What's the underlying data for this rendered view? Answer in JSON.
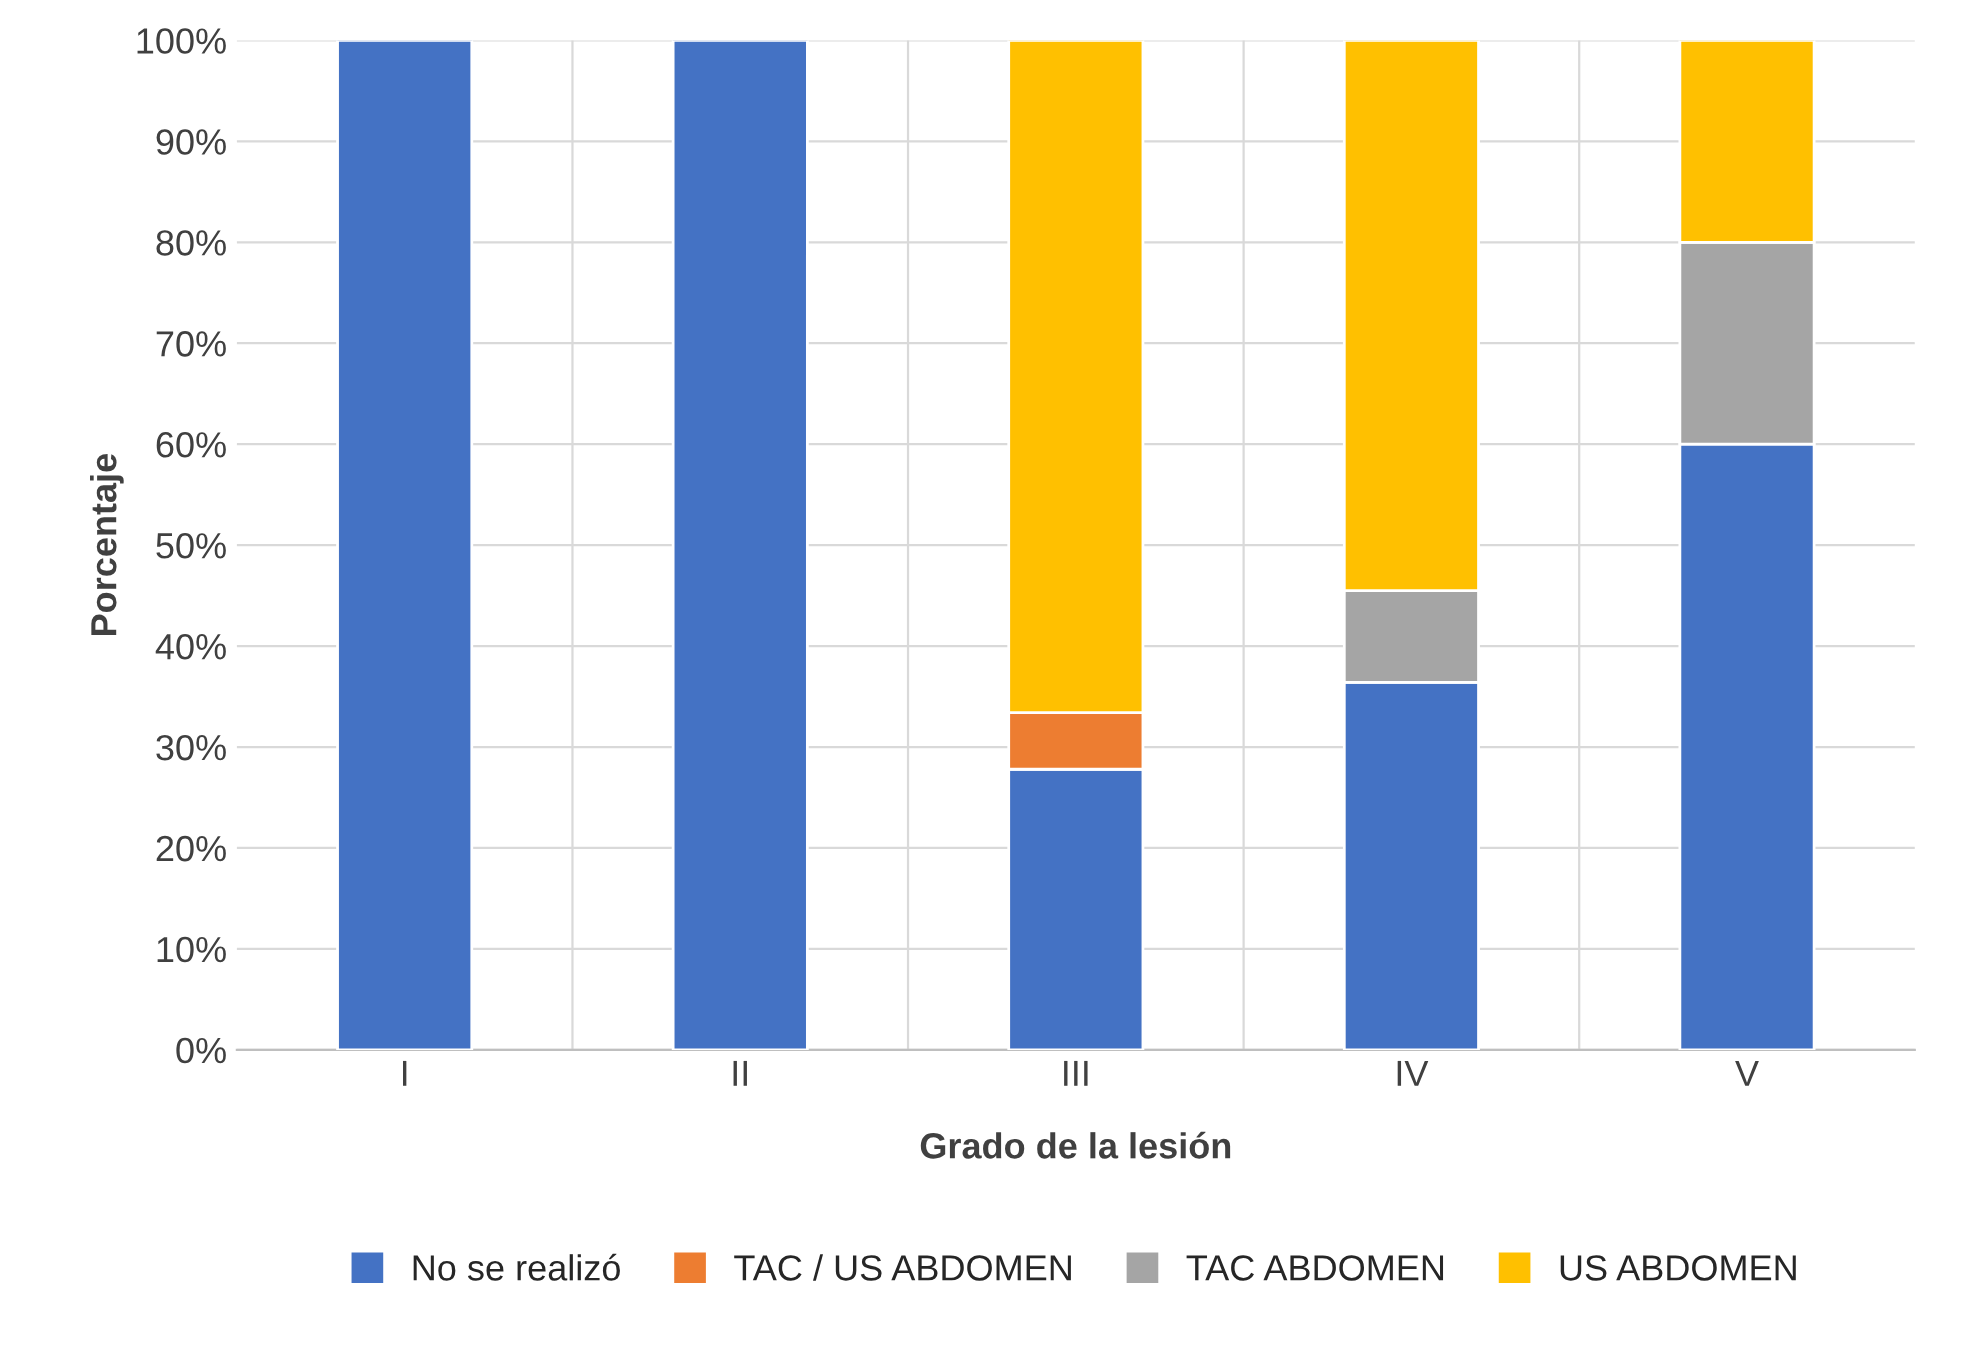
{
  "chart_data": {
    "type": "bar",
    "stacked": true,
    "xlabel": "Grado de la lesión",
    "ylabel": "Porcentaje",
    "categories": [
      "I",
      "II",
      "III",
      "IV",
      "V"
    ],
    "series": [
      {
        "name": "No se realizó",
        "color": "#4472c4",
        "values": [
          100,
          100,
          27.8,
          36.4,
          60
        ]
      },
      {
        "name": "TAC / US ABDOMEN",
        "color": "#ed7d31",
        "values": [
          0,
          0,
          5.6,
          0,
          0
        ]
      },
      {
        "name": "TAC ABDOMEN",
        "color": "#a5a5a5",
        "values": [
          0,
          0,
          0,
          9.1,
          20
        ]
      },
      {
        "name": "US ABDOMEN",
        "color": "#ffc000",
        "values": [
          0,
          0,
          66.6,
          54.5,
          20
        ]
      }
    ],
    "ylim": [
      0,
      100
    ],
    "yticks": [
      {
        "value": 0,
        "label": "0%"
      },
      {
        "value": 10,
        "label": "10%"
      },
      {
        "value": 20,
        "label": "20%"
      },
      {
        "value": 30,
        "label": "30%"
      },
      {
        "value": 40,
        "label": "40%"
      },
      {
        "value": 50,
        "label": "50%"
      },
      {
        "value": 60,
        "label": "60%"
      },
      {
        "value": 70,
        "label": "70%"
      },
      {
        "value": 80,
        "label": "80%"
      },
      {
        "value": 90,
        "label": "90%"
      },
      {
        "value": 100,
        "label": "100%"
      }
    ],
    "grid": "y",
    "legend": "bottom"
  }
}
